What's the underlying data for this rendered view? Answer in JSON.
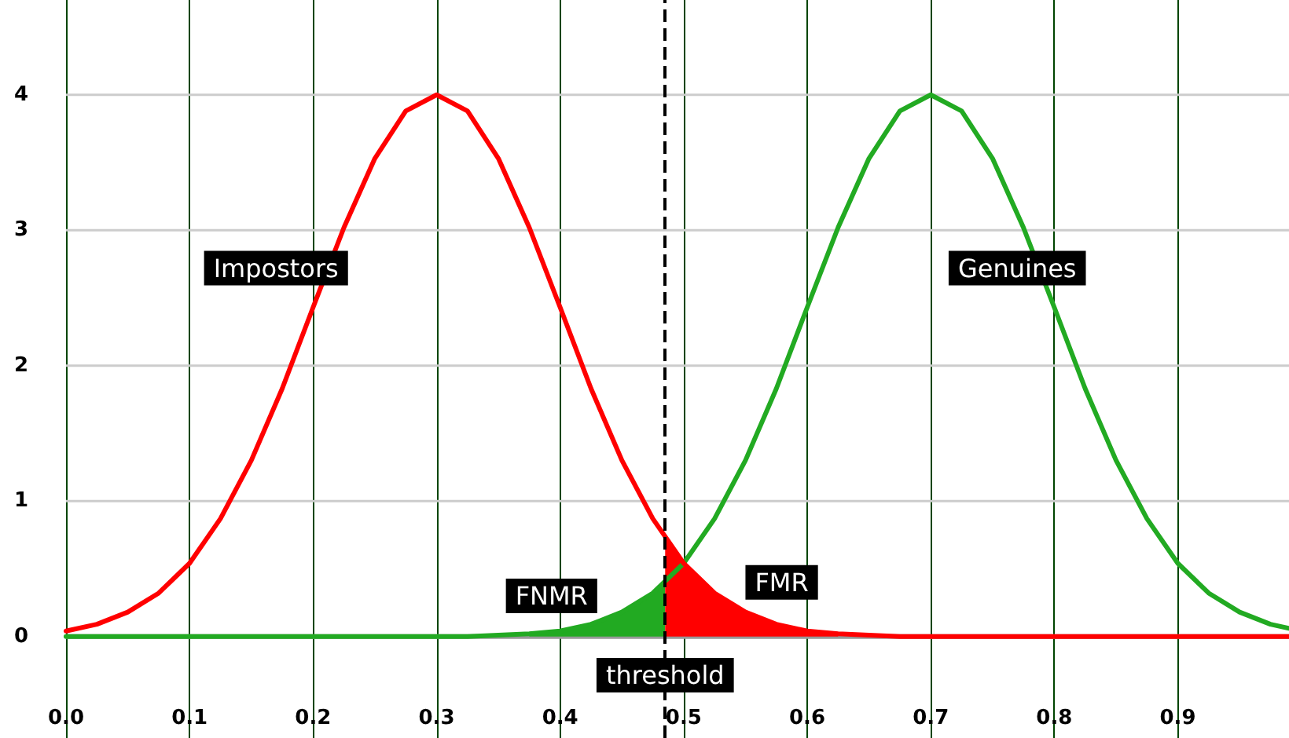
{
  "chart_data": {
    "type": "line",
    "x": [
      0,
      0.025,
      0.05,
      0.075,
      0.1,
      0.125,
      0.15,
      0.175,
      0.2,
      0.225,
      0.25,
      0.275,
      0.3,
      0.325,
      0.35,
      0.375,
      0.4,
      0.425,
      0.45,
      0.475,
      0.5,
      0.525,
      0.55,
      0.575,
      0.6,
      0.625,
      0.65,
      0.675,
      0.7,
      0.725,
      0.75,
      0.775,
      0.8,
      0.825,
      0.85,
      0.875,
      0.9,
      0.925,
      0.95,
      0.975,
      0.99
    ],
    "series": [
      {
        "name": "Genuines",
        "color": "#22aa22",
        "values": [
          0,
          0,
          0,
          0,
          0,
          0,
          0,
          0,
          0,
          0,
          0,
          0,
          0,
          0,
          0.01,
          0.02,
          0.04,
          0.09,
          0.18,
          0.32,
          0.54,
          0.87,
          1.3,
          1.83,
          2.43,
          3.02,
          3.53,
          3.88,
          4,
          3.88,
          3.53,
          3.02,
          2.43,
          1.83,
          1.3,
          0.87,
          0.54,
          0.32,
          0.18,
          0.09,
          0.06
        ]
      },
      {
        "name": "Impostors",
        "color": "#ff0000",
        "values": [
          0.04,
          0.09,
          0.18,
          0.32,
          0.54,
          0.87,
          1.3,
          1.83,
          2.43,
          3.02,
          3.53,
          3.88,
          4,
          3.88,
          3.53,
          3.02,
          2.43,
          1.83,
          1.3,
          0.87,
          0.54,
          0.32,
          0.18,
          0.09,
          0.04,
          0.02,
          0.01,
          0,
          0,
          0,
          0,
          0,
          0,
          0,
          0,
          0,
          0,
          0,
          0,
          0,
          0
        ]
      },
      {
        "name": "FNMR",
        "type": "area",
        "color": "#22aa22",
        "x": [
          0.375,
          0.4,
          0.425,
          0.45,
          0.475,
          0.485
        ],
        "values": [
          0.02,
          0.04,
          0.09,
          0.18,
          0.32,
          0.4
        ]
      },
      {
        "name": "FMR",
        "type": "area",
        "color": "#ff0000",
        "x": [
          0.485,
          0.5,
          0.525,
          0.55,
          0.575,
          0.6,
          0.625
        ],
        "values": [
          0.72,
          0.54,
          0.32,
          0.18,
          0.09,
          0.04,
          0.02
        ]
      }
    ],
    "xlim": [
      0,
      0.99
    ],
    "xticks": [
      {
        "value": 0,
        "label": "0.0"
      },
      0.1,
      0.2,
      0.3,
      0.4,
      0.5,
      0.6,
      0.7,
      0.8,
      0.9
    ],
    "ylim": [
      -0.75,
      4.7
    ],
    "yticks": [
      0,
      1,
      2,
      3,
      4
    ],
    "ref_lines": [
      {
        "axis": "x",
        "value": 0.485,
        "label": "threshold",
        "line_style": "dashed",
        "color": "#000000"
      }
    ],
    "grid": true,
    "marker": "none",
    "line_style": "solid",
    "legend": false
  }
}
